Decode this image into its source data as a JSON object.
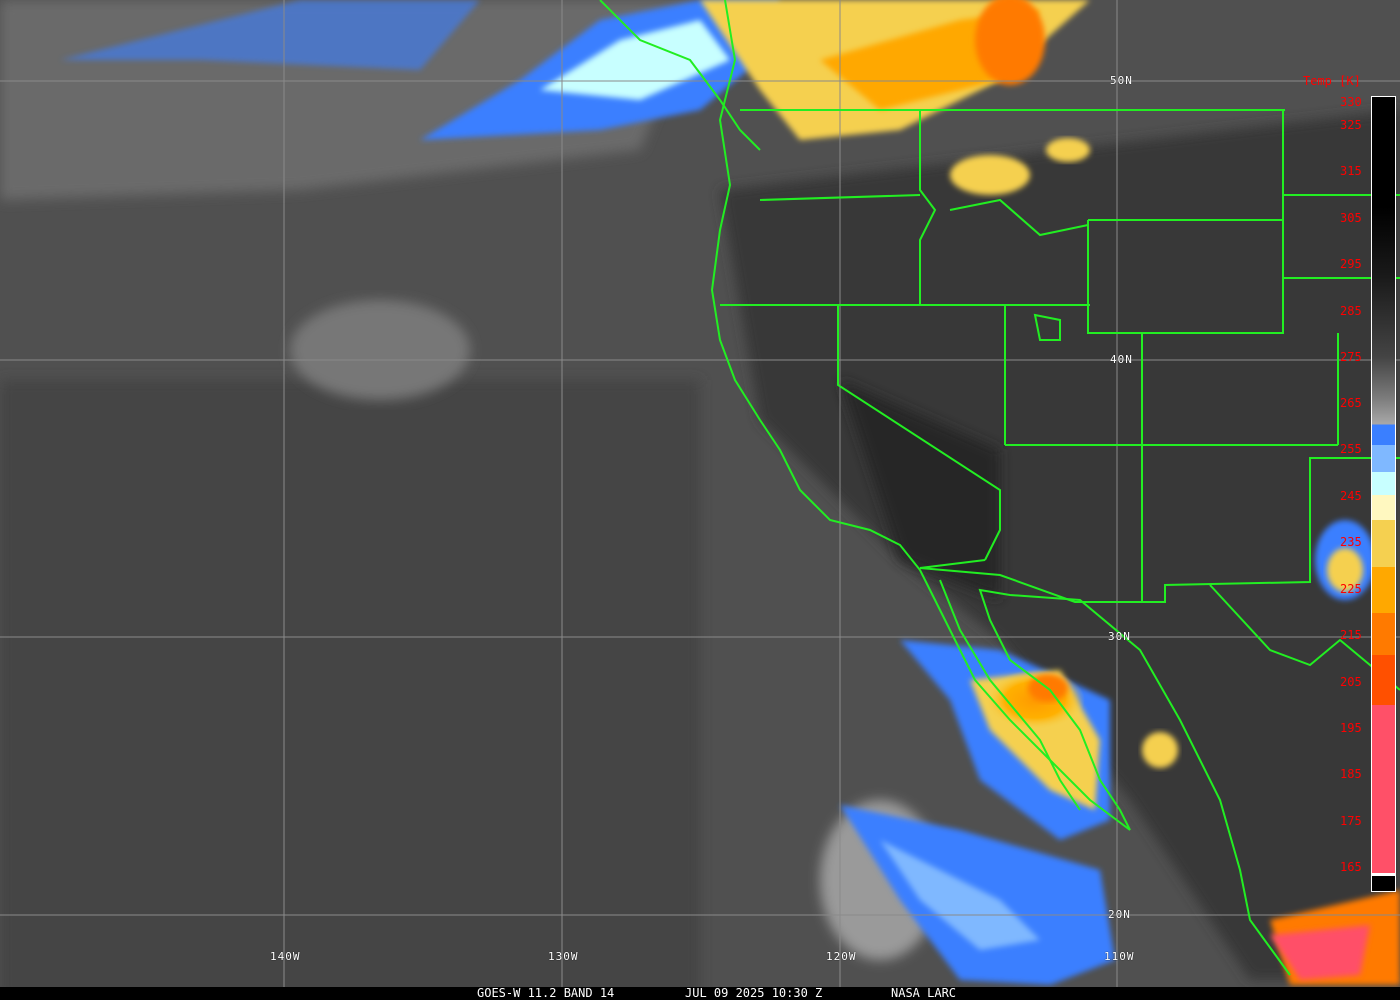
{
  "grid": {
    "lat_labels": [
      "50N",
      "40N",
      "30N",
      "20N"
    ],
    "lon_labels": [
      "140W",
      "130W",
      "120W",
      "110W"
    ]
  },
  "colorbar": {
    "title": "Temp [K]",
    "ticks": [
      "330",
      "325",
      "315",
      "305",
      "295",
      "285",
      "275",
      "265",
      "255",
      "245",
      "235",
      "225",
      "215",
      "205",
      "195",
      "185",
      "175",
      "165"
    ],
    "colors": {
      "cold_cloud_blue": "#3a7fff",
      "light_blue": "#7fb8ff",
      "pale_cyan": "#c8ffff",
      "pale_yellow": "#fff8c0",
      "yellow": "#f5d050",
      "orange": "#ffa800",
      "dark_orange": "#ff7a00",
      "red_orange": "#ff5000",
      "pink": "#ff5068",
      "border_lines": "#22ee22",
      "tick_labels": "#ff0000"
    }
  },
  "footer": {
    "satellite": "GOES-W 11.2 BAND 14",
    "datetime": "JUL 09 2025 10:30 Z",
    "credit": "NASA LARC"
  }
}
